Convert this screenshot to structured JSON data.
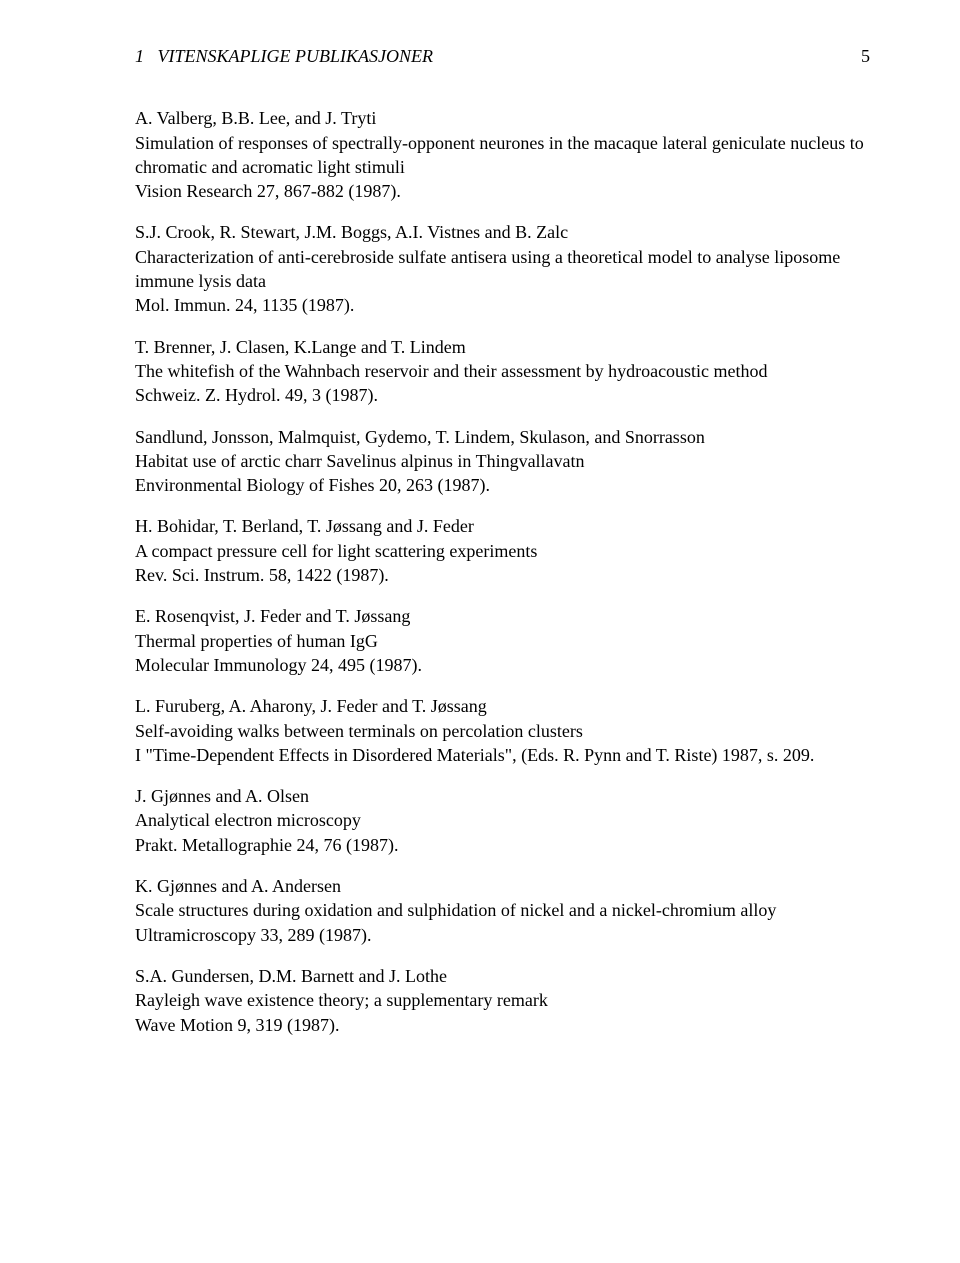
{
  "header": {
    "section_num": "1",
    "section_title": "VITENSKAPLIGE PUBLIKASJONER",
    "page_num": "5"
  },
  "entries": [
    {
      "authors": "A. Valberg, B.B. Lee, and J. Tryti",
      "title": "Simulation of responses of spectrally-opponent neurones in the macaque lateral geniculate nucleus to chromatic and acromatic light stimuli",
      "source": "Vision Research 27, 867-882 (1987)."
    },
    {
      "authors": "S.J. Crook, R. Stewart, J.M. Boggs, A.I. Vistnes and B. Zalc",
      "title": "Characterization of anti-cerebroside sulfate antisera using a theoretical model to analyse liposome immune lysis data",
      "source": "Mol. Immun. 24, 1135 (1987)."
    },
    {
      "authors": "T. Brenner, J. Clasen, K.Lange and T. Lindem",
      "title": "The whitefish of the Wahnbach reservoir and their assessment by hydroacoustic method",
      "source": "Schweiz. Z. Hydrol. 49, 3 (1987)."
    },
    {
      "authors": "Sandlund, Jonsson, Malmquist, Gydemo, T. Lindem, Skulason, and Snorrasson",
      "title": "Habitat use of arctic charr Savelinus alpinus in Thingvallavatn",
      "source": "Environmental Biology of Fishes 20, 263 (1987)."
    },
    {
      "authors": "H. Bohidar, T. Berland, T. Jøssang and J. Feder",
      "title": "A compact pressure cell for light scattering experiments",
      "source": "Rev. Sci. Instrum. 58, 1422 (1987)."
    },
    {
      "authors": "E. Rosenqvist, J. Feder and T. Jøssang",
      "title": "Thermal properties of human IgG",
      "source": "Molecular Immunology 24, 495 (1987)."
    },
    {
      "authors": "L. Furuberg, A. Aharony, J. Feder and T. Jøssang",
      "title": "Self-avoiding walks between terminals on percolation clusters",
      "source": "I \"Time-Dependent Effects in Disordered Materials\", (Eds. R. Pynn and T. Riste) 1987, s. 209."
    },
    {
      "authors": "J. Gjønnes and A. Olsen",
      "title": "Analytical electron microscopy",
      "source": "Prakt. Metallographie 24, 76 (1987)."
    },
    {
      "authors": "K. Gjønnes and A. Andersen",
      "title": "Scale structures during oxidation and sulphidation of nickel and a nickel-chromium alloy",
      "source": "Ultramicroscopy 33, 289 (1987)."
    },
    {
      "authors": "S.A. Gundersen, D.M. Barnett and J. Lothe",
      "title": "Rayleigh wave existence theory; a supplementary remark",
      "source": "Wave Motion 9, 319 (1987)."
    }
  ]
}
